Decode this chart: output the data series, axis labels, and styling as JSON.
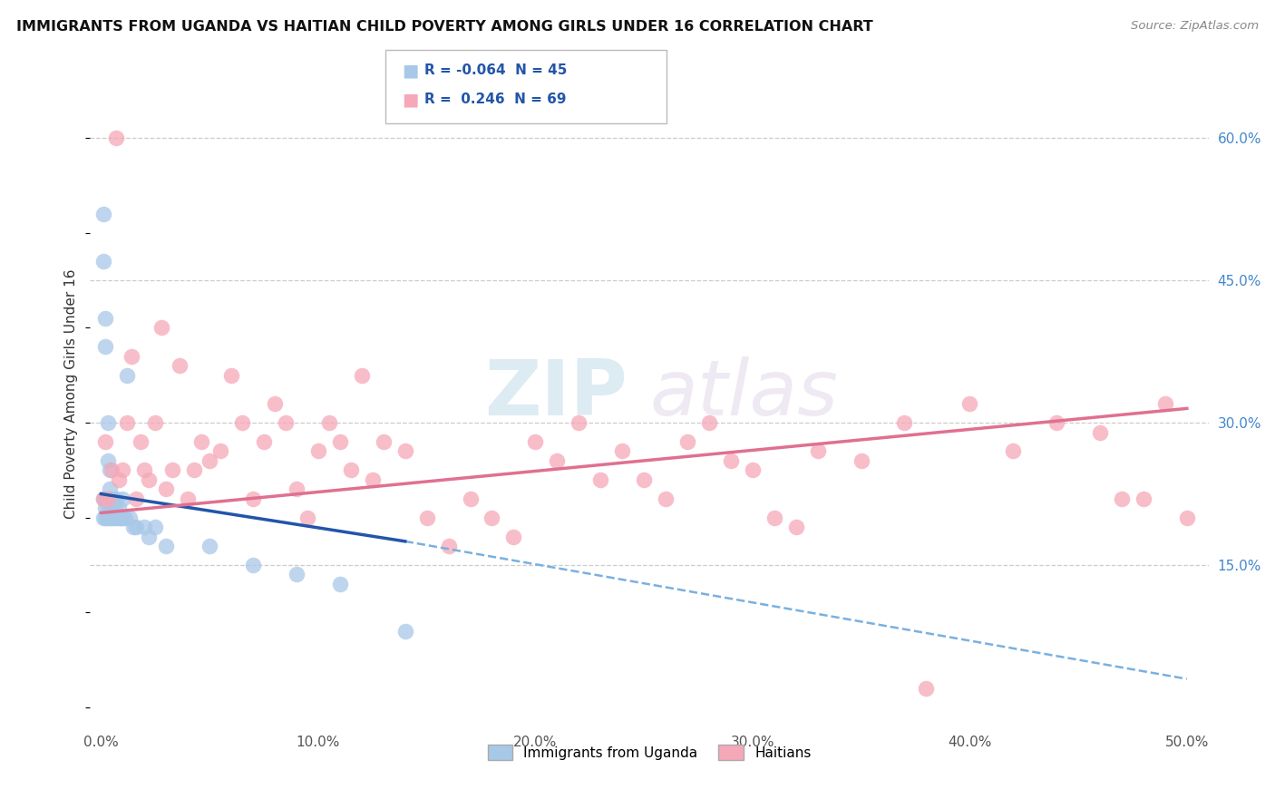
{
  "title": "IMMIGRANTS FROM UGANDA VS HAITIAN CHILD POVERTY AMONG GIRLS UNDER 16 CORRELATION CHART",
  "source": "Source: ZipAtlas.com",
  "ylabel": "Child Poverty Among Girls Under 16",
  "legend_labels": [
    "Immigrants from Uganda",
    "Haitians"
  ],
  "r_uganda": -0.064,
  "n_uganda": 45,
  "r_haitians": 0.246,
  "n_haitians": 69,
  "xlim": [
    -0.005,
    0.51
  ],
  "ylim": [
    -0.02,
    0.68
  ],
  "xticks": [
    0.0,
    0.1,
    0.2,
    0.3,
    0.4,
    0.5
  ],
  "xticklabels": [
    "0.0%",
    "10.0%",
    "20.0%",
    "30.0%",
    "40.0%",
    "50.0%"
  ],
  "yticks_right": [
    0.15,
    0.3,
    0.45,
    0.6
  ],
  "yticklabels_right": [
    "15.0%",
    "30.0%",
    "45.0%",
    "60.0%"
  ],
  "color_uganda": "#a8c8e8",
  "color_haitians": "#f5a8b8",
  "trendline_uganda_solid_color": "#2255aa",
  "trendline_uganda_dash_color": "#7ab0e0",
  "trendline_haitians_color": "#e07090",
  "background": "#ffffff",
  "watermark_zip": "ZIP",
  "watermark_atlas": "atlas",
  "uganda_x": [
    0.001,
    0.001,
    0.001,
    0.001,
    0.002,
    0.002,
    0.002,
    0.002,
    0.002,
    0.003,
    0.003,
    0.003,
    0.003,
    0.003,
    0.004,
    0.004,
    0.004,
    0.004,
    0.005,
    0.005,
    0.005,
    0.006,
    0.006,
    0.006,
    0.007,
    0.007,
    0.008,
    0.008,
    0.009,
    0.01,
    0.01,
    0.011,
    0.012,
    0.013,
    0.015,
    0.016,
    0.02,
    0.022,
    0.025,
    0.03,
    0.05,
    0.07,
    0.09,
    0.11,
    0.14
  ],
  "uganda_y": [
    0.52,
    0.47,
    0.22,
    0.2,
    0.41,
    0.38,
    0.22,
    0.21,
    0.2,
    0.3,
    0.26,
    0.22,
    0.21,
    0.2,
    0.25,
    0.23,
    0.22,
    0.2,
    0.22,
    0.21,
    0.2,
    0.22,
    0.21,
    0.2,
    0.22,
    0.2,
    0.21,
    0.2,
    0.2,
    0.22,
    0.2,
    0.2,
    0.35,
    0.2,
    0.19,
    0.19,
    0.19,
    0.18,
    0.19,
    0.17,
    0.17,
    0.15,
    0.14,
    0.13,
    0.08
  ],
  "haitians_x": [
    0.001,
    0.002,
    0.003,
    0.005,
    0.007,
    0.008,
    0.01,
    0.012,
    0.014,
    0.016,
    0.018,
    0.02,
    0.022,
    0.025,
    0.028,
    0.03,
    0.033,
    0.036,
    0.04,
    0.043,
    0.046,
    0.05,
    0.055,
    0.06,
    0.065,
    0.07,
    0.075,
    0.08,
    0.085,
    0.09,
    0.095,
    0.1,
    0.105,
    0.11,
    0.115,
    0.12,
    0.125,
    0.13,
    0.14,
    0.15,
    0.16,
    0.17,
    0.18,
    0.19,
    0.2,
    0.21,
    0.22,
    0.23,
    0.24,
    0.25,
    0.26,
    0.27,
    0.28,
    0.29,
    0.3,
    0.31,
    0.32,
    0.33,
    0.35,
    0.37,
    0.38,
    0.4,
    0.42,
    0.44,
    0.46,
    0.47,
    0.48,
    0.49,
    0.5
  ],
  "haitians_y": [
    0.22,
    0.28,
    0.22,
    0.25,
    0.6,
    0.24,
    0.25,
    0.3,
    0.37,
    0.22,
    0.28,
    0.25,
    0.24,
    0.3,
    0.4,
    0.23,
    0.25,
    0.36,
    0.22,
    0.25,
    0.28,
    0.26,
    0.27,
    0.35,
    0.3,
    0.22,
    0.28,
    0.32,
    0.3,
    0.23,
    0.2,
    0.27,
    0.3,
    0.28,
    0.25,
    0.35,
    0.24,
    0.28,
    0.27,
    0.2,
    0.17,
    0.22,
    0.2,
    0.18,
    0.28,
    0.26,
    0.3,
    0.24,
    0.27,
    0.24,
    0.22,
    0.28,
    0.3,
    0.26,
    0.25,
    0.2,
    0.19,
    0.27,
    0.26,
    0.3,
    0.02,
    0.32,
    0.27,
    0.3,
    0.29,
    0.22,
    0.22,
    0.32,
    0.2
  ],
  "trendline_uganda_x0": 0.0,
  "trendline_uganda_x1": 0.14,
  "trendline_uganda_y0": 0.225,
  "trendline_uganda_y1": 0.175,
  "trendline_uganda_dash_x0": 0.14,
  "trendline_uganda_dash_x1": 0.5,
  "trendline_uganda_dash_y0": 0.175,
  "trendline_uganda_dash_y1": 0.03,
  "trendline_haitians_x0": 0.0,
  "trendline_haitians_x1": 0.5,
  "trendline_haitians_y0": 0.205,
  "trendline_haitians_y1": 0.315
}
